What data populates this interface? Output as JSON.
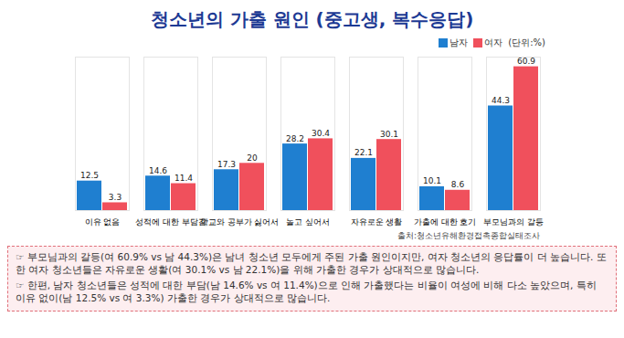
{
  "chart_data": {
    "type": "bar",
    "title": "청소년의 가출 원인 (중고생, 복수응답)",
    "unit": "(단위:%)",
    "categories": [
      "이유 없음",
      "성적에 대한 부담감",
      "학교와 공부가 싫어서",
      "놀고 싶어서",
      "자유로운 생활",
      "가출에 대한 호기",
      "부모님과의 갈등"
    ],
    "series": [
      {
        "name": "남자",
        "color": "#1f7fd0",
        "values": [
          12.5,
          14.6,
          17.3,
          28.2,
          22.1,
          10.1,
          44.3
        ]
      },
      {
        "name": "여자",
        "color": "#f0505c",
        "values": [
          3.3,
          11.4,
          20,
          30.4,
          30.1,
          8.6,
          60.9
        ]
      }
    ],
    "ylim": [
      0,
      65
    ],
    "data_labels": true,
    "tick_labels": "x",
    "legend": "top-right",
    "source": "출처:청소년유해환경접촉종합실태조사",
    "annotations": [
      "☞ 부모님과의 갈등(여 60.9% vs 남 44.3%)은 남녀 청소년 모두에게 주된 가출 원인이지만, 여자 청소년의 응답률이 더 높습니다. 또한 여자 청소년들은 자유로운 생활(여 30.1% vs 남 22.1%)을 위해 가출한 경우가 상대적으로 많습니다.",
      "☞ 한편, 남자 청소년들은 성적에 대한 부담(남 14.6% vs 여 11.4%)으로 인해 가출했다는 비율이 여성에 비해 다소 높았으며, 특히 이유 없이(남 12.5% vs 여 3.3%) 가출한 경우가 상대적으로 많습니다."
    ]
  }
}
